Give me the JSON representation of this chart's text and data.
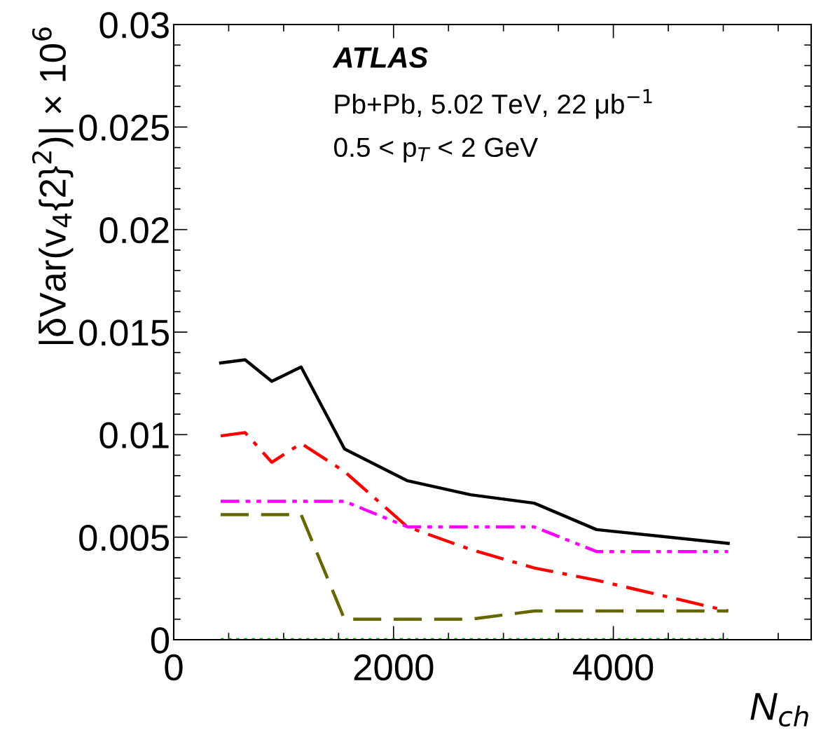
{
  "chart_data": {
    "type": "line",
    "xlabel": "N$_{ch}$",
    "ylabel": "|δVar(v$_{4}${2}$^{2}$)| × 10$^{6}$",
    "annotations": [
      "ATLAS",
      "Pb+Pb, 5.02 TeV, 22 μb$^{−1}$",
      "0.5 < p$_{T}$ < 2 GeV"
    ],
    "x": [
      427,
      650,
      892,
      1159,
      1554,
      2127,
      2701,
      3280,
      3847,
      5045
    ],
    "series": [
      {
        "color": "#000000",
        "line_style": "solid",
        "values": [
          0.0135,
          0.01365,
          0.0126,
          0.0133,
          0.0093,
          0.00775,
          0.00707,
          0.00666,
          0.00537,
          0.0047
        ]
      },
      {
        "color": "#ff0000",
        "line_style": "dashdot",
        "values": [
          0.00994,
          0.0101,
          0.00865,
          0.00957,
          0.0082,
          0.0055,
          0.0044,
          0.0035,
          0.0029,
          0.0014
        ]
      },
      {
        "color": "#ff00ff",
        "line_style": "dashdotdot",
        "values": [
          0.00675,
          0.00675,
          0.00675,
          0.00675,
          0.00675,
          0.0055,
          0.0055,
          0.0055,
          0.0043,
          0.0043
        ]
      },
      {
        "color": "#666600",
        "line_style": "dashed",
        "values": [
          0.0061,
          0.0061,
          0.0061,
          0.0061,
          0.001,
          0.001,
          0.001,
          0.0014,
          0.0014,
          0.0014
        ]
      },
      {
        "color": "#00aa00",
        "line_style": "dotted",
        "values": [
          0,
          0,
          0,
          0,
          0,
          0,
          0,
          0,
          0,
          0
        ]
      }
    ],
    "xlim": [
      0,
      5800
    ],
    "xticks": [
      0,
      2000,
      4000
    ],
    "ylim": [
      0,
      0.03
    ],
    "yticks": [
      0,
      0.005,
      0.01,
      0.015,
      0.02,
      0.025,
      0.03
    ],
    "grid": false
  }
}
